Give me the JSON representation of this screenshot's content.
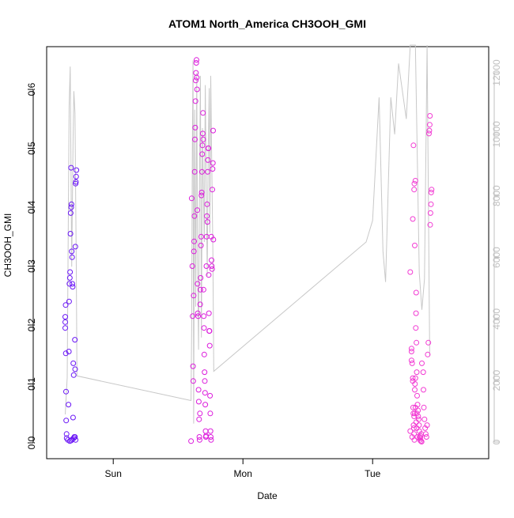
{
  "chart_data": {
    "type": "scatter",
    "title": "ATOM1 North_America CH3OOH_GMI",
    "xlabel": "Date",
    "ylabel": "CH3OOH_GMI",
    "x_ticks": [
      "Sun",
      "Mon",
      "Tue"
    ],
    "y_ticks": [
      "0.0",
      "0.1",
      "0.2",
      "0.3",
      "0.4",
      "0.5",
      "0.6"
    ],
    "y2_ticks": [
      "0",
      "2000",
      "4000",
      "6000",
      "8000",
      "10000",
      "12000"
    ],
    "ylim": [
      0,
      0.65
    ],
    "y2lim": [
      0,
      13000
    ],
    "x_unit": "days since Sat 00:00",
    "xlim": [
      0.578,
      3.8
    ],
    "grid": false,
    "colors": {
      "group1": "#6a16f6",
      "group2": "#dc1cdc",
      "group3": "#f23bd3",
      "line": "#c8c8c8",
      "right_axis": "#c0c0c0"
    },
    "series": [
      {
        "name": "group1",
        "points": [
          [
            0.63,
            0.195
          ],
          [
            0.63,
            0.205
          ],
          [
            0.63,
            0.214
          ],
          [
            0.633,
            0.234
          ],
          [
            0.634,
            0.152
          ],
          [
            0.636,
            0.087
          ],
          [
            0.637,
            0.038
          ],
          [
            0.64,
            0.015
          ],
          [
            0.641,
            0.008
          ],
          [
            0.65,
            0.005
          ],
          [
            0.655,
            0.065
          ],
          [
            0.658,
            0.155
          ],
          [
            0.66,
            0.24
          ],
          [
            0.662,
            0.27
          ],
          [
            0.665,
            0.28
          ],
          [
            0.667,
            0.29
          ],
          [
            0.67,
            0.355
          ],
          [
            0.672,
            0.39
          ],
          [
            0.675,
            0.467
          ],
          [
            0.676,
            0.4
          ],
          [
            0.678,
            0.405
          ],
          [
            0.68,
            0.325
          ],
          [
            0.683,
            0.315
          ],
          [
            0.685,
            0.27
          ],
          [
            0.687,
            0.265
          ],
          [
            0.69,
            0.043
          ],
          [
            0.692,
            0.135
          ],
          [
            0.695,
            0.115
          ],
          [
            0.7,
            0.01
          ],
          [
            0.704,
            0.175
          ],
          [
            0.706,
            0.125
          ],
          [
            0.708,
            0.333
          ],
          [
            0.71,
            0.44
          ],
          [
            0.712,
            0.443
          ],
          [
            0.714,
            0.452
          ],
          [
            0.716,
            0.463
          ],
          [
            0.665,
            0.003
          ],
          [
            0.675,
            0.004
          ],
          [
            0.685,
            0.006
          ],
          [
            0.695,
            0.008
          ],
          [
            0.705,
            0.01
          ],
          [
            0.71,
            0.005
          ]
        ]
      },
      {
        "name": "group2",
        "points": [
          [
            1.6,
            0.003
          ],
          [
            1.605,
            0.415
          ],
          [
            1.61,
            0.3
          ],
          [
            1.612,
            0.215
          ],
          [
            1.615,
            0.13
          ],
          [
            1.617,
            0.105
          ],
          [
            1.62,
            0.25
          ],
          [
            1.622,
            0.325
          ],
          [
            1.624,
            0.342
          ],
          [
            1.626,
            0.385
          ],
          [
            1.628,
            0.46
          ],
          [
            1.63,
            0.515
          ],
          [
            1.632,
            0.535
          ],
          [
            1.634,
            0.58
          ],
          [
            1.636,
            0.615
          ],
          [
            1.638,
            0.628
          ],
          [
            1.64,
            0.645
          ],
          [
            1.642,
            0.65
          ],
          [
            1.644,
            0.62
          ],
          [
            1.646,
            0.6
          ],
          [
            1.648,
            0.395
          ],
          [
            1.65,
            0.27
          ],
          [
            1.652,
            0.22
          ],
          [
            1.655,
            0.215
          ],
          [
            1.658,
            0.09
          ],
          [
            1.66,
            0.07
          ],
          [
            1.662,
            0.04
          ],
          [
            1.664,
            0.01
          ],
          [
            1.666,
            0.005
          ],
          [
            1.668,
            0.05
          ],
          [
            1.67,
            0.235
          ],
          [
            1.672,
            0.26
          ],
          [
            1.674,
            0.28
          ],
          [
            1.676,
            0.335
          ],
          [
            1.678,
            0.35
          ],
          [
            1.68,
            0.42
          ],
          [
            1.682,
            0.425
          ],
          [
            1.684,
            0.46
          ],
          [
            1.686,
            0.49
          ],
          [
            1.688,
            0.505
          ],
          [
            1.69,
            0.525
          ],
          [
            1.692,
            0.56
          ],
          [
            1.694,
            0.515
          ],
          [
            1.696,
            0.26
          ],
          [
            1.698,
            0.215
          ],
          [
            1.7,
            0.195
          ],
          [
            1.702,
            0.15
          ],
          [
            1.704,
            0.12
          ],
          [
            1.706,
            0.105
          ],
          [
            1.708,
            0.085
          ],
          [
            1.71,
            0.065
          ],
          [
            1.712,
            0.02
          ],
          [
            1.714,
            0.01
          ],
          [
            1.716,
            0.012
          ],
          [
            1.718,
            0.3
          ],
          [
            1.72,
            0.35
          ],
          [
            1.722,
            0.385
          ],
          [
            1.724,
            0.405
          ],
          [
            1.726,
            0.375
          ],
          [
            1.728,
            0.46
          ],
          [
            1.73,
            0.48
          ],
          [
            1.732,
            0.5
          ],
          [
            1.734,
            0.5
          ],
          [
            1.736,
            0.285
          ],
          [
            1.738,
            0.22
          ],
          [
            1.74,
            0.19
          ],
          [
            1.742,
            0.19
          ],
          [
            1.744,
            0.165
          ],
          [
            1.746,
            0.08
          ],
          [
            1.748,
            0.05
          ],
          [
            1.75,
            0.02
          ],
          [
            1.752,
            0.01
          ],
          [
            1.754,
            0.005
          ],
          [
            1.756,
            0.35
          ],
          [
            1.758,
            0.31
          ],
          [
            1.76,
            0.3
          ],
          [
            1.762,
            0.295
          ],
          [
            1.764,
            0.43
          ],
          [
            1.766,
            0.465
          ],
          [
            1.768,
            0.475
          ],
          [
            1.77,
            0.53
          ],
          [
            1.772,
            0.345
          ]
        ]
      },
      {
        "name": "group3",
        "points": [
          [
            3.29,
            0.02
          ],
          [
            3.3,
            0.14
          ],
          [
            3.305,
            0.01
          ],
          [
            3.31,
            0.11
          ],
          [
            3.312,
            0.06
          ],
          [
            3.314,
            0.05
          ],
          [
            3.316,
            0.03
          ],
          [
            3.318,
            0.025
          ],
          [
            3.32,
            0.015
          ],
          [
            3.322,
            0.005
          ],
          [
            3.325,
            0.09
          ],
          [
            3.327,
            0.1
          ],
          [
            3.33,
            0.11
          ],
          [
            3.335,
            0.22
          ],
          [
            3.338,
            0.17
          ],
          [
            3.34,
            0.12
          ],
          [
            3.343,
            0.08
          ],
          [
            3.346,
            0.065
          ],
          [
            3.35,
            0.055
          ],
          [
            3.352,
            0.045
          ],
          [
            3.355,
            0.04
          ],
          [
            3.358,
            0.03
          ],
          [
            3.36,
            0.02
          ],
          [
            3.362,
            0.01
          ],
          [
            3.365,
            0.005
          ],
          [
            3.367,
            0.008
          ],
          [
            3.37,
            0.012
          ],
          [
            3.372,
            0.003
          ],
          [
            3.375,
            0.015
          ],
          [
            3.378,
            0.002
          ],
          [
            3.3,
            0.155
          ],
          [
            3.31,
            0.38
          ],
          [
            3.315,
            0.505
          ],
          [
            3.32,
            0.43
          ],
          [
            3.322,
            0.44
          ],
          [
            3.325,
            0.335
          ],
          [
            3.33,
            0.445
          ],
          [
            3.333,
            0.195
          ],
          [
            3.336,
            0.255
          ],
          [
            3.34,
            0.05
          ],
          [
            3.38,
            0.135
          ],
          [
            3.39,
            0.12
          ],
          [
            3.392,
            0.09
          ],
          [
            3.395,
            0.06
          ],
          [
            3.4,
            0.04
          ],
          [
            3.405,
            0.025
          ],
          [
            3.41,
            0.015
          ],
          [
            3.415,
            0.01
          ],
          [
            3.42,
            0.03
          ],
          [
            3.425,
            0.15
          ],
          [
            3.43,
            0.17
          ],
          [
            3.435,
            0.525
          ],
          [
            3.437,
            0.53
          ],
          [
            3.44,
            0.54
          ],
          [
            3.442,
            0.555
          ],
          [
            3.444,
            0.37
          ],
          [
            3.446,
            0.39
          ],
          [
            3.45,
            0.405
          ],
          [
            3.452,
            0.425
          ],
          [
            3.455,
            0.43
          ],
          [
            3.29,
            0.29
          ],
          [
            3.3,
            0.16
          ],
          [
            3.305,
            0.135
          ],
          [
            3.31,
            0.105
          ],
          [
            3.32,
            0.045
          ],
          [
            3.325,
            0.05
          ],
          [
            3.33,
            0.06
          ],
          [
            3.336,
            0.035
          ],
          [
            3.34,
            0.025
          ],
          [
            3.345,
            0.01
          ]
        ]
      }
    ],
    "altitude_line": [
      [
        0.63,
        900
      ],
      [
        0.645,
        2100
      ],
      [
        0.66,
        10900
      ],
      [
        0.668,
        12200
      ],
      [
        0.68,
        5700
      ],
      [
        0.69,
        9800
      ],
      [
        0.696,
        11400
      ],
      [
        0.705,
        10700
      ],
      [
        0.715,
        5600
      ],
      [
        0.72,
        2150
      ],
      [
        1.6,
        1350
      ],
      [
        1.605,
        3800
      ],
      [
        1.61,
        9400
      ],
      [
        1.615,
        12400
      ],
      [
        1.62,
        600
      ],
      [
        1.628,
        10800
      ],
      [
        1.636,
        4400
      ],
      [
        1.644,
        12000
      ],
      [
        1.65,
        6000
      ],
      [
        1.658,
        3000
      ],
      [
        1.665,
        8500
      ],
      [
        1.672,
        11900
      ],
      [
        1.68,
        3400
      ],
      [
        1.688,
        10200
      ],
      [
        1.695,
        8200
      ],
      [
        1.702,
        6500
      ],
      [
        1.71,
        11600
      ],
      [
        1.718,
        7800
      ],
      [
        1.725,
        5400
      ],
      [
        1.732,
        9500
      ],
      [
        1.74,
        11500
      ],
      [
        1.745,
        6800
      ],
      [
        1.752,
        11900
      ],
      [
        1.76,
        9000
      ],
      [
        1.768,
        6200
      ],
      [
        1.775,
        2300
      ],
      [
        2.95,
        6500
      ],
      [
        3.0,
        7200
      ],
      [
        3.05,
        11200
      ],
      [
        3.08,
        6200
      ],
      [
        3.1,
        5200
      ],
      [
        3.14,
        11200
      ],
      [
        3.17,
        10000
      ],
      [
        3.2,
        12300
      ],
      [
        3.26,
        10500
      ],
      [
        3.29,
        12900
      ],
      [
        3.33,
        12900
      ],
      [
        3.36,
        5500
      ],
      [
        3.38,
        4300
      ],
      [
        3.4,
        5300
      ],
      [
        3.42,
        12900
      ],
      [
        3.44,
        2800
      ]
    ]
  }
}
